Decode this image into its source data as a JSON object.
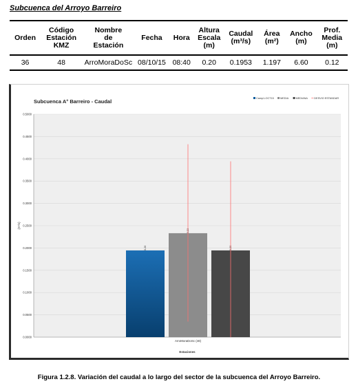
{
  "heading": "Subcuenca del Arroyo Barreiro",
  "table": {
    "headers": [
      [
        "Orden"
      ],
      [
        "Código",
        "Estación",
        "KMZ"
      ],
      [
        "Nombre",
        "de",
        "Estación"
      ],
      [
        "Fecha"
      ],
      [
        "Hora"
      ],
      [
        "Altura",
        "Escala",
        "(m)"
      ],
      [
        "Caudal",
        "(m³/s)"
      ],
      [
        "Área",
        "(m²)"
      ],
      [
        "Ancho",
        "(m)"
      ],
      [
        "Prof.",
        "Media",
        "(m)"
      ]
    ],
    "rows": [
      [
        "36",
        "48",
        "ArroMoraDoSc",
        "08/10/15",
        "08:40",
        "0.20",
        "0.1953",
        "1.197",
        "6.60",
        "0.12"
      ]
    ]
  },
  "chart_data": {
    "type": "bar",
    "title": "Subcuenca A° Barreiro - Caudal",
    "xlabel": "Estaciones",
    "ylabel": "(m³/s)",
    "ylim": [
      0,
      0.5
    ],
    "yticks": [
      "0.0000",
      "0.0500",
      "0.1000",
      "0.1500",
      "0.2000",
      "0.2500",
      "0.3000",
      "0.3500",
      "0.4000",
      "0.4500",
      "0.5000"
    ],
    "categories": [
      "ArroMoraDoSc (48)"
    ],
    "legend_position": "top-right",
    "series": [
      {
        "name": "Camp1-OCT15",
        "values": [
          0.1953
        ],
        "label": "0.20",
        "color": "#0a5b9c"
      },
      {
        "name": "MEDIA",
        "values": [
          0.2337
        ],
        "label": "0.23",
        "color": "#8c8c8c"
      },
      {
        "name": "MEDIANA",
        "values": [
          0.1953
        ],
        "label": "0.20",
        "color": "#474747"
      }
    ],
    "error_bars": [
      {
        "series": "MEDIA",
        "low": 0.0349,
        "high": 0.4326
      },
      {
        "series": "MEDIANA",
        "low": 0.0,
        "high": 0.3943
      }
    ],
    "legend_extra": "DESVIO ESTANDAR",
    "grid": true
  },
  "caption": "Figura 1.2.8. Variación del caudal a lo largo del sector de la subcuenca del Arroyo Barreiro.",
  "colors": {
    "plot_bg": "#efefef",
    "error_line": "#ff7070",
    "grid": "#d7d7d7"
  }
}
